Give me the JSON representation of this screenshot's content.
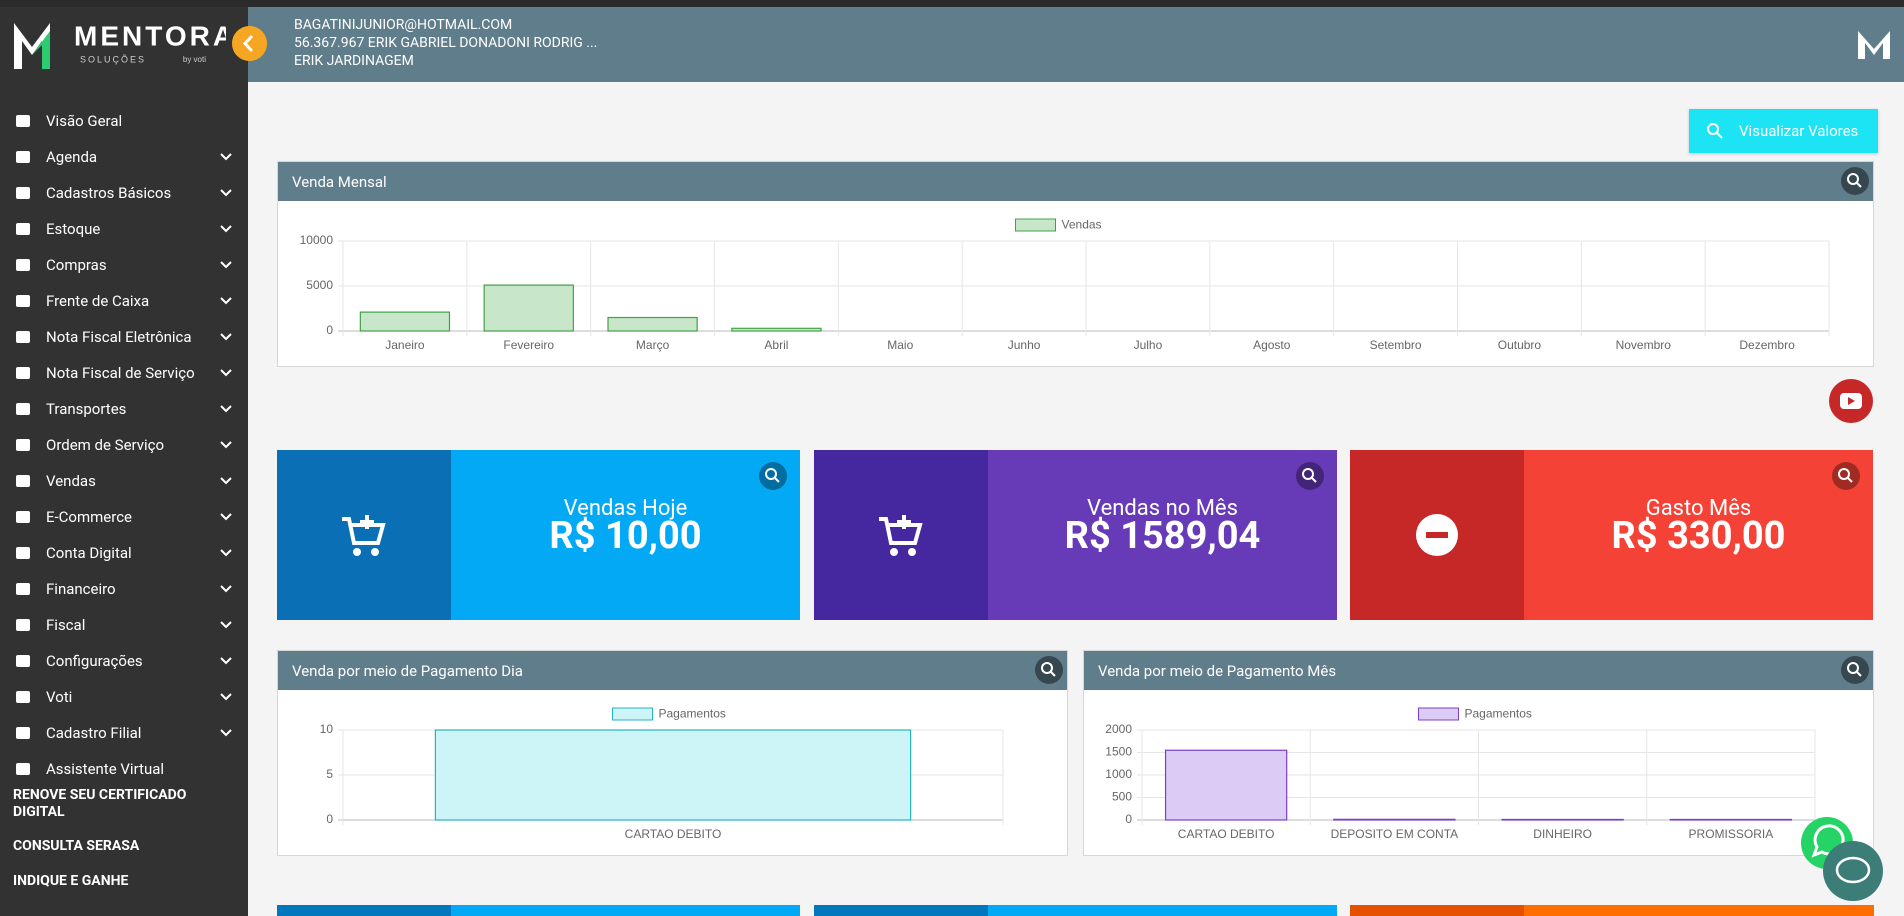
{
  "header": {
    "email": "BAGATINIJUNIOR@HOTMAIL.COM",
    "company": "56.367.967 ERIK GABRIEL DONADONI RODRIG ...",
    "name": "ERIK JARDINAGEM"
  },
  "sidebar": {
    "logo": {
      "name": "MENTORA",
      "tagline": "SOLUÇÕES",
      "by": "by voti"
    },
    "menu": [
      {
        "label": "Visão Geral",
        "expandable": false
      },
      {
        "label": "Agenda",
        "expandable": true
      },
      {
        "label": "Cadastros Básicos",
        "expandable": true
      },
      {
        "label": "Estoque",
        "expandable": true
      },
      {
        "label": "Compras",
        "expandable": true
      },
      {
        "label": "Frente de Caixa",
        "expandable": true
      },
      {
        "label": "Nota Fiscal Eletrônica",
        "expandable": true
      },
      {
        "label": "Nota Fiscal de Serviço",
        "expandable": true
      },
      {
        "label": "Transportes",
        "expandable": true
      },
      {
        "label": "Ordem de Serviço",
        "expandable": true
      },
      {
        "label": "Vendas",
        "expandable": true
      },
      {
        "label": "E-Commerce",
        "expandable": true
      },
      {
        "label": "Conta Digital",
        "expandable": true
      },
      {
        "label": "Financeiro",
        "expandable": true
      },
      {
        "label": "Fiscal",
        "expandable": true
      },
      {
        "label": "Configurações",
        "expandable": true
      },
      {
        "label": "Voti",
        "expandable": true
      },
      {
        "label": "Cadastro Filial",
        "expandable": true
      },
      {
        "label": "Assistente Virtual",
        "expandable": false
      }
    ],
    "links": [
      "RENOVE SEU CERTIFICADO DIGITAL",
      "CONSULTA SERASA",
      "INDIQUE E GANHE"
    ]
  },
  "button": "Visualizar Valores",
  "cards": [
    {
      "title": "Vendas Hoje",
      "value": "R$ 10,00"
    },
    {
      "title": "Vendas no Mês",
      "value": "R$ 1589,04"
    },
    {
      "title": "Gasto Mês",
      "value": "R$ 330,00"
    }
  ],
  "chart_data": [
    {
      "type": "bar",
      "title": "Venda Mensal",
      "categories": [
        "Janeiro",
        "Fevereiro",
        "Março",
        "Abril",
        "Maio",
        "Junho",
        "Julho",
        "Agosto",
        "Setembro",
        "Outubro",
        "Novembro",
        "Dezembro"
      ],
      "series": [
        {
          "name": "Vendas",
          "color": "#c8e6c9",
          "border_color": "#43a047",
          "values": [
            2100,
            5100,
            1500,
            300,
            0,
            0,
            0,
            0,
            0,
            0,
            0,
            0
          ]
        }
      ],
      "ylim": [
        0,
        10000
      ],
      "yticks": [
        0,
        5000,
        10000
      ],
      "grid": true
    },
    {
      "type": "bar",
      "title": "Venda por meio de Pagamento Dia",
      "categories": [
        "CARTAO DEBITO"
      ],
      "series": [
        {
          "name": "Pagamentos",
          "color": "#cdf4f6",
          "border_color": "#26b5c0",
          "values": [
            10
          ]
        }
      ],
      "ylim": [
        0,
        10
      ],
      "yticks": [
        0,
        5,
        10
      ],
      "grid": true
    },
    {
      "type": "bar",
      "title": "Venda por meio de Pagamento Mês",
      "categories": [
        "CARTAO DEBITO",
        "DEPOSITO EM CONTA",
        "DINHEIRO",
        "PROMISSORIA"
      ],
      "series": [
        {
          "name": "Pagamentos",
          "color": "#dccbf5",
          "border_color": "#7b3fc7",
          "values": [
            1550,
            15,
            12,
            12
          ]
        }
      ],
      "ylim": [
        0,
        2000
      ],
      "yticks": [
        0,
        500,
        1000,
        1500,
        2000
      ],
      "grid": true
    }
  ]
}
